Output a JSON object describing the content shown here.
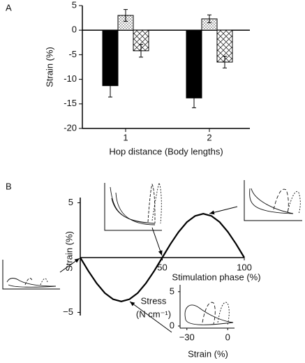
{
  "chart_data": [
    {
      "type": "bar",
      "panel": "A",
      "ylabel": "Strain (%)",
      "xlabel": "Hop distance (Body lengths)",
      "categories": [
        "1",
        "2"
      ],
      "series": [
        {
          "color": "#000000",
          "pattern": "solid",
          "values": [
            -11.3,
            -13.8
          ],
          "errors": [
            2.3,
            2.0
          ]
        },
        {
          "color": "#d8d8d8",
          "pattern": "dots",
          "values": [
            3.0,
            2.3
          ],
          "errors": [
            1.2,
            0.8
          ]
        },
        {
          "color": "#ffffff",
          "pattern": "cross",
          "values": [
            -4.2,
            -6.5
          ],
          "errors": [
            1.3,
            1.2
          ]
        }
      ],
      "ylim": [
        -20,
        5
      ],
      "yticks": [
        -20,
        -15,
        -10,
        -5,
        0,
        5
      ]
    },
    {
      "type": "line",
      "panel": "B",
      "ylabel": "Strain (%)",
      "xlabel": "Stimulation phase (%)",
      "x": [
        0,
        5,
        10,
        15,
        20,
        25,
        30,
        35,
        40,
        45,
        50,
        55,
        60,
        65,
        70,
        75,
        80,
        85,
        90,
        95,
        100
      ],
      "values": [
        0,
        -1.24,
        -2.35,
        -3.24,
        -3.8,
        -4,
        -3.8,
        -3.24,
        -2.35,
        -1.24,
        0,
        1.24,
        2.35,
        3.24,
        3.8,
        4,
        3.8,
        3.24,
        2.35,
        1.24,
        0
      ],
      "color": "#000000",
      "xlim": [
        0,
        100
      ],
      "xticks": [
        50,
        100
      ],
      "ylim": [
        -5,
        5
      ],
      "yticks": [
        {
          "value": -5,
          "label": "−5"
        },
        5
      ],
      "inset": {
        "ylabel": [
          "Stress",
          "(N cm⁻¹)"
        ],
        "xlabel": "Strain (%)",
        "ylim": [
          0,
          6
        ],
        "yticks": [
          0,
          5
        ],
        "xlim": [
          -35,
          5
        ],
        "xticks": [
          {
            "value": -30,
            "label": "−30"
          },
          0
        ]
      }
    }
  ]
}
